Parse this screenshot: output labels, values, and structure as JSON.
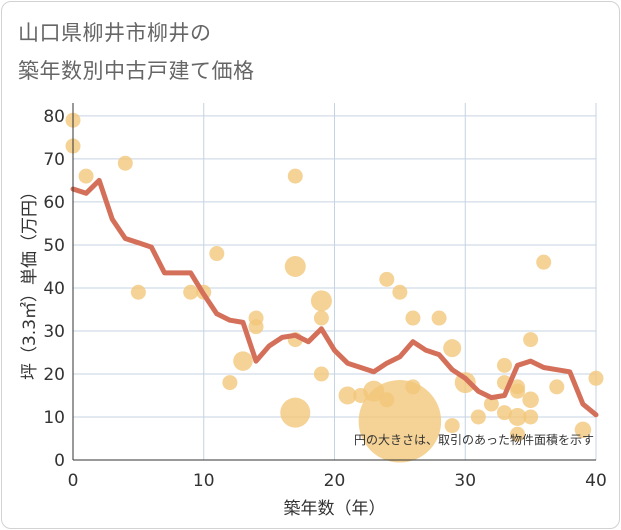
{
  "title_line1": "山口県柳井市柳井の",
  "title_line2": "築年数別中古戸建て価格",
  "colors": {
    "bubble": "#f3c77a",
    "line": "#d4705a",
    "grid": "#c6d3e3",
    "plot_bg": "#ffffff"
  },
  "chart_data": {
    "type": "scatter",
    "xlabel": "築年数（年）",
    "ylabel": "坪（3.3㎡）単価（万円）",
    "xlim": [
      0,
      40
    ],
    "ylim": [
      0,
      83
    ],
    "xticks": [
      0,
      10,
      20,
      30,
      40
    ],
    "yticks": [
      0,
      10,
      20,
      30,
      40,
      50,
      60,
      70,
      80
    ],
    "note": "円の大きさは、取引のあった物件面積を示す",
    "scatter_points": [
      {
        "x": 0,
        "y": 79,
        "size": 1
      },
      {
        "x": 0,
        "y": 73,
        "size": 1
      },
      {
        "x": 1,
        "y": 66,
        "size": 1
      },
      {
        "x": 4,
        "y": 69,
        "size": 1
      },
      {
        "x": 5,
        "y": 39,
        "size": 1
      },
      {
        "x": 9,
        "y": 39,
        "size": 1
      },
      {
        "x": 10,
        "y": 39,
        "size": 1
      },
      {
        "x": 11,
        "y": 48,
        "size": 1
      },
      {
        "x": 12,
        "y": 18,
        "size": 1
      },
      {
        "x": 13,
        "y": 23,
        "size": 1.3
      },
      {
        "x": 14,
        "y": 33,
        "size": 1
      },
      {
        "x": 14,
        "y": 31,
        "size": 1
      },
      {
        "x": 17,
        "y": 66,
        "size": 1
      },
      {
        "x": 17,
        "y": 45,
        "size": 1.4
      },
      {
        "x": 17,
        "y": 28,
        "size": 1
      },
      {
        "x": 17,
        "y": 11,
        "size": 2
      },
      {
        "x": 19,
        "y": 37,
        "size": 1.4
      },
      {
        "x": 19,
        "y": 33,
        "size": 1
      },
      {
        "x": 19,
        "y": 20,
        "size": 1
      },
      {
        "x": 21,
        "y": 15,
        "size": 1.2
      },
      {
        "x": 22,
        "y": 15,
        "size": 1
      },
      {
        "x": 23,
        "y": 16,
        "size": 1.4
      },
      {
        "x": 24,
        "y": 42,
        "size": 1
      },
      {
        "x": 24,
        "y": 14,
        "size": 1
      },
      {
        "x": 25,
        "y": 39,
        "size": 1
      },
      {
        "x": 25,
        "y": 9,
        "size": 5.5
      },
      {
        "x": 26,
        "y": 33,
        "size": 1
      },
      {
        "x": 26,
        "y": 17,
        "size": 1
      },
      {
        "x": 28,
        "y": 33,
        "size": 1
      },
      {
        "x": 29,
        "y": 26,
        "size": 1.2
      },
      {
        "x": 29,
        "y": 8,
        "size": 1
      },
      {
        "x": 30,
        "y": 18,
        "size": 1.4
      },
      {
        "x": 31,
        "y": 10,
        "size": 1
      },
      {
        "x": 32,
        "y": 13,
        "size": 1
      },
      {
        "x": 33,
        "y": 22,
        "size": 1
      },
      {
        "x": 33,
        "y": 18,
        "size": 1
      },
      {
        "x": 33,
        "y": 11,
        "size": 1
      },
      {
        "x": 34,
        "y": 17,
        "size": 1
      },
      {
        "x": 34,
        "y": 16,
        "size": 1
      },
      {
        "x": 34,
        "y": 10,
        "size": 1.2
      },
      {
        "x": 34,
        "y": 6,
        "size": 1
      },
      {
        "x": 35,
        "y": 28,
        "size": 1
      },
      {
        "x": 35,
        "y": 14,
        "size": 1.1
      },
      {
        "x": 35,
        "y": 10,
        "size": 1
      },
      {
        "x": 36,
        "y": 46,
        "size": 1
      },
      {
        "x": 37,
        "y": 17,
        "size": 1
      },
      {
        "x": 39,
        "y": 7,
        "size": 1.1
      },
      {
        "x": 40,
        "y": 19,
        "size": 1
      }
    ],
    "trend_line": {
      "x": [
        0,
        1,
        2,
        3,
        4,
        5,
        6,
        7,
        8,
        9,
        10,
        11,
        12,
        13,
        14,
        15,
        16,
        17,
        18,
        19,
        20,
        21,
        22,
        23,
        24,
        25,
        26,
        27,
        28,
        29,
        30,
        31,
        32,
        33,
        34,
        35,
        36,
        37,
        38,
        39,
        40
      ],
      "y": [
        63,
        62,
        65,
        56,
        51.5,
        50.5,
        49.5,
        43.5,
        43.5,
        43.5,
        38.5,
        34,
        32.5,
        32,
        23,
        26.5,
        28.5,
        29,
        27.5,
        30.5,
        25.5,
        22.5,
        21.5,
        20.5,
        22.5,
        24,
        27.5,
        25.5,
        24.5,
        21,
        19,
        16,
        14.5,
        15,
        22,
        23,
        21.5,
        21,
        20.5,
        13,
        10.5
      ]
    }
  }
}
